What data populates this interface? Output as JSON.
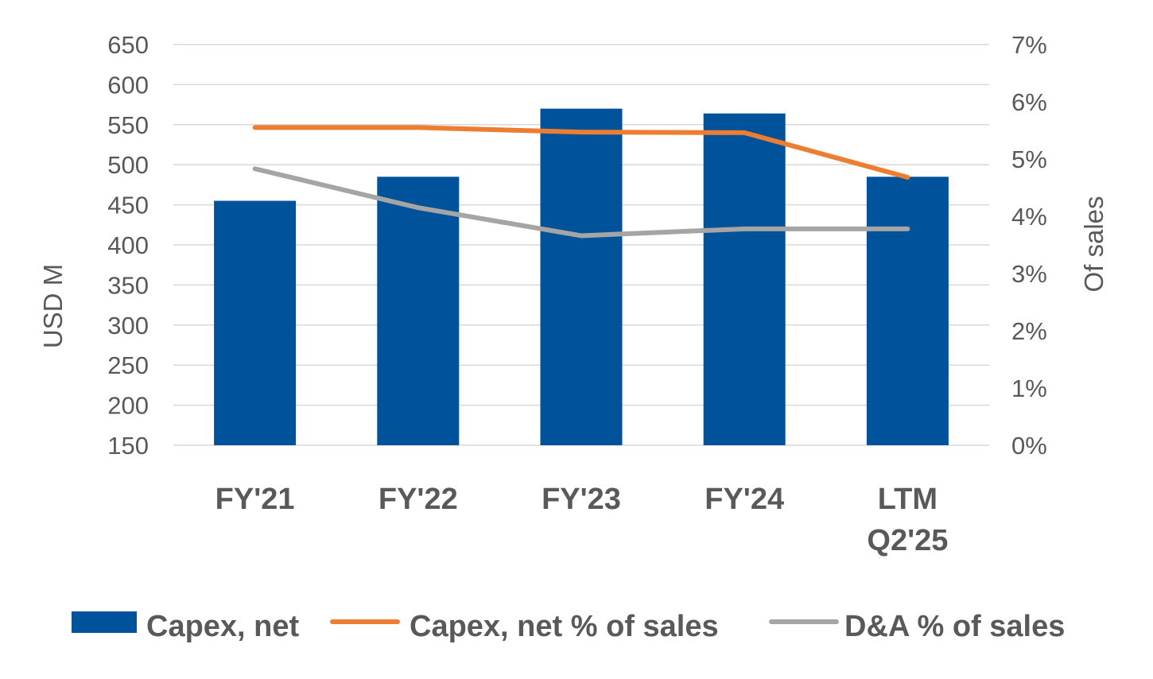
{
  "chart_data": {
    "type": "bar+line",
    "categories": [
      "FY'21",
      "FY'22",
      "FY'23",
      "FY'24",
      "LTM Q2'25"
    ],
    "category_lines": [
      [
        "FY'21"
      ],
      [
        "FY'22"
      ],
      [
        "FY'23"
      ],
      [
        "FY'24"
      ],
      [
        "LTM",
        "Q2'25"
      ]
    ],
    "bars": {
      "name": "Capex, net",
      "color": "#00529B",
      "axis": "left",
      "values": [
        455,
        485,
        570,
        564,
        485
      ]
    },
    "lines": [
      {
        "name": "Capex, net % of sales",
        "color": "#ED7D31",
        "axis": "right",
        "values": [
          5.55,
          5.55,
          5.47,
          5.46,
          4.68
        ]
      },
      {
        "name": "D&A % of sales",
        "color": "#A5A5A5",
        "axis": "right",
        "values": [
          4.83,
          4.15,
          3.66,
          3.78,
          3.78
        ]
      }
    ],
    "y_left": {
      "label": "USD M",
      "min": 150,
      "max": 650,
      "ticks": [
        150,
        200,
        250,
        300,
        350,
        400,
        450,
        500,
        550,
        600,
        650
      ],
      "tick_labels": [
        "150",
        "200",
        "250",
        "300",
        "350",
        "400",
        "450",
        "500",
        "550",
        "600",
        "650"
      ]
    },
    "y_right": {
      "label": "Of sales",
      "min": 0,
      "max": 7,
      "ticks": [
        0,
        1,
        2,
        3,
        4,
        5,
        6,
        7
      ],
      "tick_labels": [
        "0%",
        "1%",
        "2%",
        "3%",
        "4%",
        "5%",
        "6%",
        "7%"
      ]
    },
    "grid": true,
    "legend_position": "bottom",
    "legend": [
      {
        "label": "Capex, net",
        "type": "bar",
        "color": "#00529B"
      },
      {
        "label": "Capex, net % of sales",
        "type": "line",
        "color": "#ED7D31"
      },
      {
        "label": "D&A % of sales",
        "type": "line",
        "color": "#A5A5A5"
      }
    ]
  }
}
